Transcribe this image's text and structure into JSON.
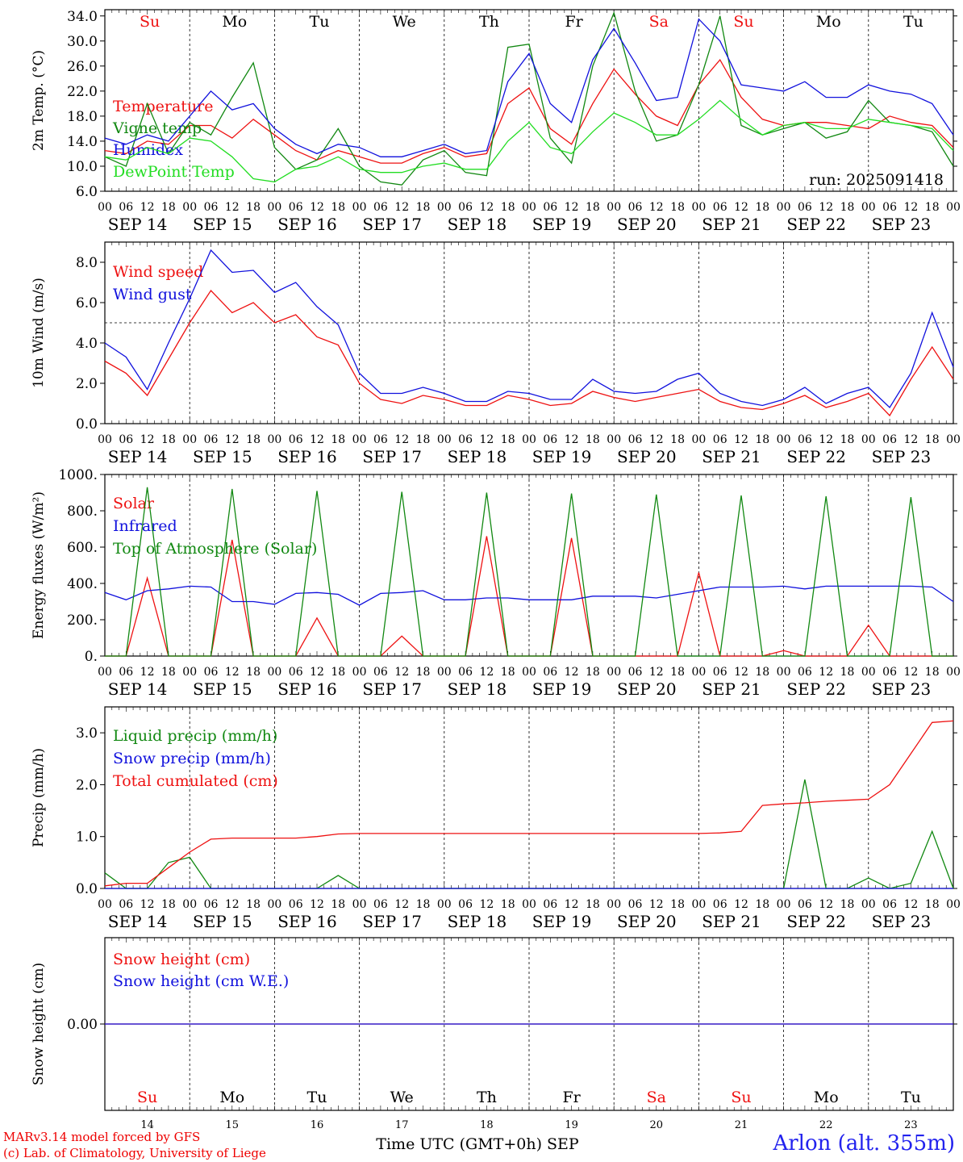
{
  "footer": {
    "credit_line1": "MARv3.14 model forced by GFS",
    "credit_line2": "(c) Lab. of Climatology, University of Liege",
    "x_axis_title": "Time UTC (GMT+0h) SEP",
    "station": "Arlon (alt. 355m)"
  },
  "timeline": {
    "hour_ticks": [
      "00",
      "06",
      "12",
      "18"
    ],
    "date_labels": [
      "SEP 14",
      "SEP 15",
      "SEP 16",
      "SEP 17",
      "SEP 18",
      "SEP 19",
      "SEP 20",
      "SEP 21",
      "SEP 22",
      "SEP 23"
    ],
    "days": [
      {
        "abbr": "Su",
        "num": "14",
        "weekend": true
      },
      {
        "abbr": "Mo",
        "num": "15",
        "weekend": false
      },
      {
        "abbr": "Tu",
        "num": "16",
        "weekend": false
      },
      {
        "abbr": "We",
        "num": "17",
        "weekend": false
      },
      {
        "abbr": "Th",
        "num": "18",
        "weekend": false
      },
      {
        "abbr": "Fr",
        "num": "19",
        "weekend": false
      },
      {
        "abbr": "Sa",
        "num": "20",
        "weekend": true
      },
      {
        "abbr": "Su",
        "num": "21",
        "weekend": true
      },
      {
        "abbr": "Mo",
        "num": "22",
        "weekend": false
      },
      {
        "abbr": "Tu",
        "num": "23",
        "weekend": false
      }
    ]
  },
  "colors": {
    "red": "#ee1111",
    "green": "#118811",
    "blue": "#1111dd",
    "lightgreen": "#22dd22",
    "weekend": "#ee1111",
    "weekday": "#000000"
  },
  "chart_data": [
    {
      "type": "line",
      "id": "temp",
      "ylabel": "2m Temp. (°C)",
      "ylim": [
        6,
        35
      ],
      "yticks": [
        6,
        10,
        14,
        18,
        22,
        26,
        30,
        34
      ],
      "ytick_labels": [
        "6.0",
        "10.0",
        "14.0",
        "18.0",
        "22.0",
        "26.0",
        "30.0",
        "34.0"
      ],
      "annotation": "run: 2025091418",
      "x_hours": [
        0,
        6,
        12,
        18,
        24,
        30,
        36,
        42,
        48,
        54,
        60,
        66,
        72,
        78,
        84,
        90,
        96,
        102,
        108,
        114,
        120,
        126,
        132,
        138,
        144,
        150,
        156,
        162,
        168,
        174,
        180,
        186,
        192,
        198,
        204,
        210,
        216,
        222,
        228,
        234,
        240
      ],
      "series": [
        {
          "name": "Temperature",
          "color": "red",
          "y": [
            12.5,
            12,
            14,
            13.5,
            16.5,
            16.5,
            14.5,
            17.5,
            15,
            12.5,
            11,
            12.5,
            11.5,
            10.5,
            10.5,
            12,
            13,
            11.5,
            12,
            20,
            22.5,
            16,
            13.5,
            20,
            25.5,
            21.5,
            18,
            16.5,
            23,
            27,
            21,
            17.5,
            16.5,
            17,
            17,
            16.5,
            16,
            18,
            17,
            16.5,
            13
          ]
        },
        {
          "name": "Vigne temp",
          "color": "green",
          "y": [
            11.5,
            10,
            20,
            12,
            17,
            15,
            21,
            26.5,
            13,
            9.5,
            11,
            16,
            10,
            7.5,
            7,
            11,
            12.5,
            9,
            8.5,
            29,
            29.5,
            14.5,
            10.5,
            26,
            34.5,
            22,
            14,
            15,
            23,
            34,
            16.5,
            15,
            16,
            17,
            14.5,
            15.5,
            20.5,
            17,
            16.5,
            15.5,
            10
          ]
        },
        {
          "name": "Humidex",
          "color": "blue",
          "y": [
            14.5,
            13.5,
            15,
            14,
            18,
            22,
            19,
            20,
            16,
            13.5,
            12,
            13.5,
            13,
            11.5,
            11.5,
            12.5,
            13.5,
            12,
            12.5,
            23.5,
            28,
            20,
            17,
            27,
            32,
            26.5,
            20.5,
            21,
            33.5,
            30,
            23,
            22.5,
            22,
            23.5,
            21,
            21,
            23,
            22,
            21.5,
            20,
            15
          ]
        },
        {
          "name": "DewPoint Temp",
          "color": "lightgreen",
          "y": [
            11.5,
            11,
            13,
            12,
            14.5,
            14,
            11.5,
            8,
            7.5,
            9.5,
            10,
            11.5,
            9.5,
            9,
            9,
            10,
            10.5,
            9.5,
            9.5,
            14,
            17,
            13,
            12,
            15.5,
            18.5,
            17,
            15,
            15,
            17.5,
            20.5,
            17.5,
            15,
            16.5,
            17,
            16,
            16,
            17.5,
            17,
            16.5,
            16,
            12.5
          ]
        }
      ]
    },
    {
      "type": "line",
      "id": "wind",
      "ylabel": "10m Wind (m/s)",
      "ylim": [
        0,
        9
      ],
      "yticks": [
        0,
        2,
        4,
        6,
        8
      ],
      "ytick_labels": [
        "0.0",
        "2.0",
        "4.0",
        "6.0",
        "8.0"
      ],
      "reference_line": 5,
      "x_hours": [
        0,
        6,
        12,
        18,
        24,
        30,
        36,
        42,
        48,
        54,
        60,
        66,
        72,
        78,
        84,
        90,
        96,
        102,
        108,
        114,
        120,
        126,
        132,
        138,
        144,
        150,
        156,
        162,
        168,
        174,
        180,
        186,
        192,
        198,
        204,
        210,
        216,
        222,
        228,
        234,
        240
      ],
      "series": [
        {
          "name": "Wind speed",
          "color": "red",
          "y": [
            3.1,
            2.5,
            1.4,
            3.2,
            5,
            6.6,
            5.5,
            6,
            5,
            5.4,
            4.3,
            3.9,
            2,
            1.2,
            1,
            1.4,
            1.2,
            0.9,
            0.9,
            1.4,
            1.2,
            0.9,
            1,
            1.6,
            1.3,
            1.1,
            1.3,
            1.5,
            1.7,
            1.1,
            0.8,
            0.7,
            1,
            1.4,
            0.8,
            1.1,
            1.5,
            0.4,
            2.2,
            3.8,
            2.2
          ]
        },
        {
          "name": "Wind gust",
          "color": "blue",
          "y": [
            4,
            3.3,
            1.7,
            4,
            6.2,
            8.6,
            7.5,
            7.6,
            6.5,
            7,
            5.8,
            4.9,
            2.5,
            1.5,
            1.5,
            1.8,
            1.5,
            1.1,
            1.1,
            1.6,
            1.5,
            1.2,
            1.2,
            2.2,
            1.6,
            1.5,
            1.6,
            2.2,
            2.5,
            1.5,
            1.1,
            0.9,
            1.2,
            1.8,
            1,
            1.5,
            1.8,
            0.8,
            2.5,
            5.5,
            2.8
          ]
        }
      ]
    },
    {
      "type": "line",
      "id": "energy",
      "ylabel": "Energy fluxes (W/m²)",
      "ylim": [
        0,
        1000
      ],
      "yticks": [
        0,
        200,
        400,
        600,
        800,
        1000
      ],
      "ytick_labels": [
        "0.",
        "200.",
        "400.",
        "600.",
        "800.",
        "1000."
      ],
      "x_hours": [
        0,
        6,
        12,
        18,
        24,
        30,
        36,
        42,
        48,
        54,
        60,
        66,
        72,
        78,
        84,
        90,
        96,
        102,
        108,
        114,
        120,
        126,
        132,
        138,
        144,
        150,
        156,
        162,
        168,
        174,
        180,
        186,
        192,
        198,
        204,
        210,
        216,
        222,
        228,
        234,
        240
      ],
      "series": [
        {
          "name": "Solar",
          "color": "red",
          "y": [
            0,
            0,
            430,
            0,
            0,
            0,
            640,
            0,
            0,
            0,
            210,
            0,
            0,
            0,
            110,
            0,
            0,
            0,
            660,
            0,
            0,
            0,
            650,
            0,
            0,
            0,
            0,
            0,
            460,
            0,
            0,
            0,
            30,
            0,
            0,
            0,
            170,
            0,
            0,
            0,
            0
          ]
        },
        {
          "name": "Infrared",
          "color": "blue",
          "y": [
            350,
            310,
            360,
            370,
            385,
            380,
            300,
            300,
            285,
            345,
            350,
            340,
            280,
            345,
            350,
            360,
            310,
            310,
            320,
            320,
            310,
            310,
            310,
            330,
            330,
            330,
            320,
            340,
            360,
            380,
            380,
            380,
            385,
            370,
            385,
            385,
            385,
            385,
            385,
            380,
            300
          ]
        },
        {
          "name": "Top of Atmosphere (Solar)",
          "color": "green",
          "y": [
            0,
            0,
            930,
            0,
            0,
            0,
            920,
            0,
            0,
            0,
            910,
            0,
            0,
            0,
            905,
            0,
            0,
            0,
            900,
            0,
            0,
            0,
            895,
            0,
            0,
            0,
            890,
            0,
            0,
            0,
            885,
            0,
            0,
            0,
            880,
            0,
            0,
            0,
            875,
            0,
            0
          ]
        }
      ]
    },
    {
      "type": "line",
      "id": "precip",
      "ylabel": "Precip (mm/h)",
      "ylim": [
        0,
        3.5
      ],
      "yticks": [
        0,
        1,
        2,
        3
      ],
      "ytick_labels": [
        "0.0",
        "1.0",
        "2.0",
        "3.0"
      ],
      "x_hours": [
        0,
        6,
        12,
        18,
        24,
        30,
        36,
        42,
        48,
        54,
        60,
        66,
        72,
        78,
        84,
        90,
        96,
        102,
        108,
        114,
        120,
        126,
        132,
        138,
        144,
        150,
        156,
        162,
        168,
        174,
        180,
        186,
        192,
        198,
        204,
        210,
        216,
        222,
        228,
        234,
        240
      ],
      "series": [
        {
          "name": "Liquid precip (mm/h)",
          "color": "green",
          "y": [
            0.3,
            0,
            0,
            0.5,
            0.6,
            0,
            0,
            0,
            0,
            0,
            0,
            0.25,
            0,
            0,
            0,
            0,
            0,
            0,
            0,
            0,
            0,
            0,
            0,
            0,
            0,
            0,
            0,
            0,
            0,
            0,
            0,
            0,
            0,
            2.1,
            0,
            0,
            0.2,
            0,
            0.1,
            1.1,
            0
          ]
        },
        {
          "name": "Snow precip (mm/h)",
          "color": "blue",
          "y": [
            0,
            0,
            0,
            0,
            0,
            0,
            0,
            0,
            0,
            0,
            0,
            0,
            0,
            0,
            0,
            0,
            0,
            0,
            0,
            0,
            0,
            0,
            0,
            0,
            0,
            0,
            0,
            0,
            0,
            0,
            0,
            0,
            0,
            0,
            0,
            0,
            0,
            0,
            0,
            0,
            0
          ]
        },
        {
          "name": "Total cumulated (cm)",
          "color": "red",
          "y": [
            0.05,
            0.1,
            0.1,
            0.4,
            0.7,
            0.95,
            0.97,
            0.97,
            0.97,
            0.97,
            1.0,
            1.05,
            1.06,
            1.06,
            1.06,
            1.06,
            1.06,
            1.06,
            1.06,
            1.06,
            1.06,
            1.06,
            1.06,
            1.06,
            1.06,
            1.06,
            1.06,
            1.06,
            1.06,
            1.07,
            1.1,
            1.6,
            1.63,
            1.65,
            1.68,
            1.7,
            1.72,
            2.0,
            2.6,
            3.2,
            3.23
          ]
        }
      ]
    },
    {
      "type": "line",
      "id": "snow",
      "ylabel": "Snow height (cm)",
      "ylim": [
        -1,
        1
      ],
      "yticks": [
        0
      ],
      "ytick_labels": [
        "0.00"
      ],
      "x_hours": [
        0,
        240
      ],
      "series": [
        {
          "name": "Snow height (cm)",
          "color": "red",
          "y": [
            0,
            0
          ]
        },
        {
          "name": "Snow height (cm W.E.)",
          "color": "blue",
          "y": [
            0,
            0
          ]
        }
      ]
    }
  ]
}
